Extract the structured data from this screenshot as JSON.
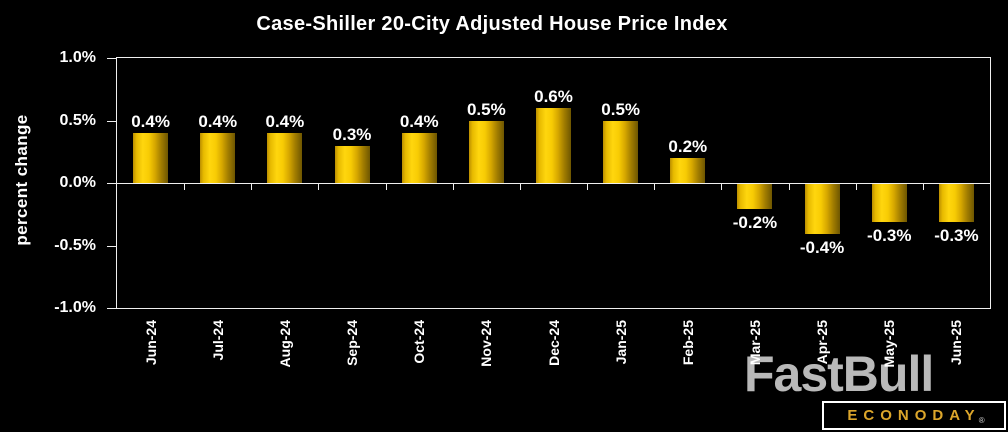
{
  "chart_data": {
    "type": "bar",
    "title": "Case-Shiller 20-City Adjusted House Price Index",
    "xlabel": "",
    "ylabel": "percent change",
    "categories": [
      "Jun-24",
      "Jul-24",
      "Aug-24",
      "Sep-24",
      "Oct-24",
      "Nov-24",
      "Dec-24",
      "Jan-25",
      "Feb-25",
      "Mar-25",
      "Apr-25",
      "May-25",
      "Jun-25"
    ],
    "values": [
      0.4,
      0.4,
      0.4,
      0.3,
      0.4,
      0.5,
      0.6,
      0.5,
      0.2,
      -0.2,
      -0.4,
      -0.3,
      -0.3
    ],
    "value_labels": [
      "0.4%",
      "0.4%",
      "0.4%",
      "0.3%",
      "0.4%",
      "0.5%",
      "0.6%",
      "0.5%",
      "0.2%",
      "-0.2%",
      "-0.4%",
      "-0.3%",
      "-0.3%"
    ],
    "ylim": [
      -1.0,
      1.0
    ],
    "yticks": [
      {
        "value": 1.0,
        "label": "1.0%"
      },
      {
        "value": 0.5,
        "label": "0.5%"
      },
      {
        "value": 0.0,
        "label": "0.0%"
      },
      {
        "value": -0.5,
        "label": "-0.5%"
      },
      {
        "value": -1.0,
        "label": "-1.0%"
      }
    ],
    "grid": false,
    "legend": "none",
    "background_color": "#000000",
    "axis_color": "#efefef",
    "text_color": "#ffffff",
    "bar_color_bright": "#ffd60e",
    "bar_color_dark": "#6e5600"
  },
  "branding": {
    "watermark_text": "FastBull",
    "watermark_color": "#c3c3c3",
    "logo_text": "ECONODAY",
    "registered_mark": "®",
    "logo_text_color": "#dca62b"
  }
}
